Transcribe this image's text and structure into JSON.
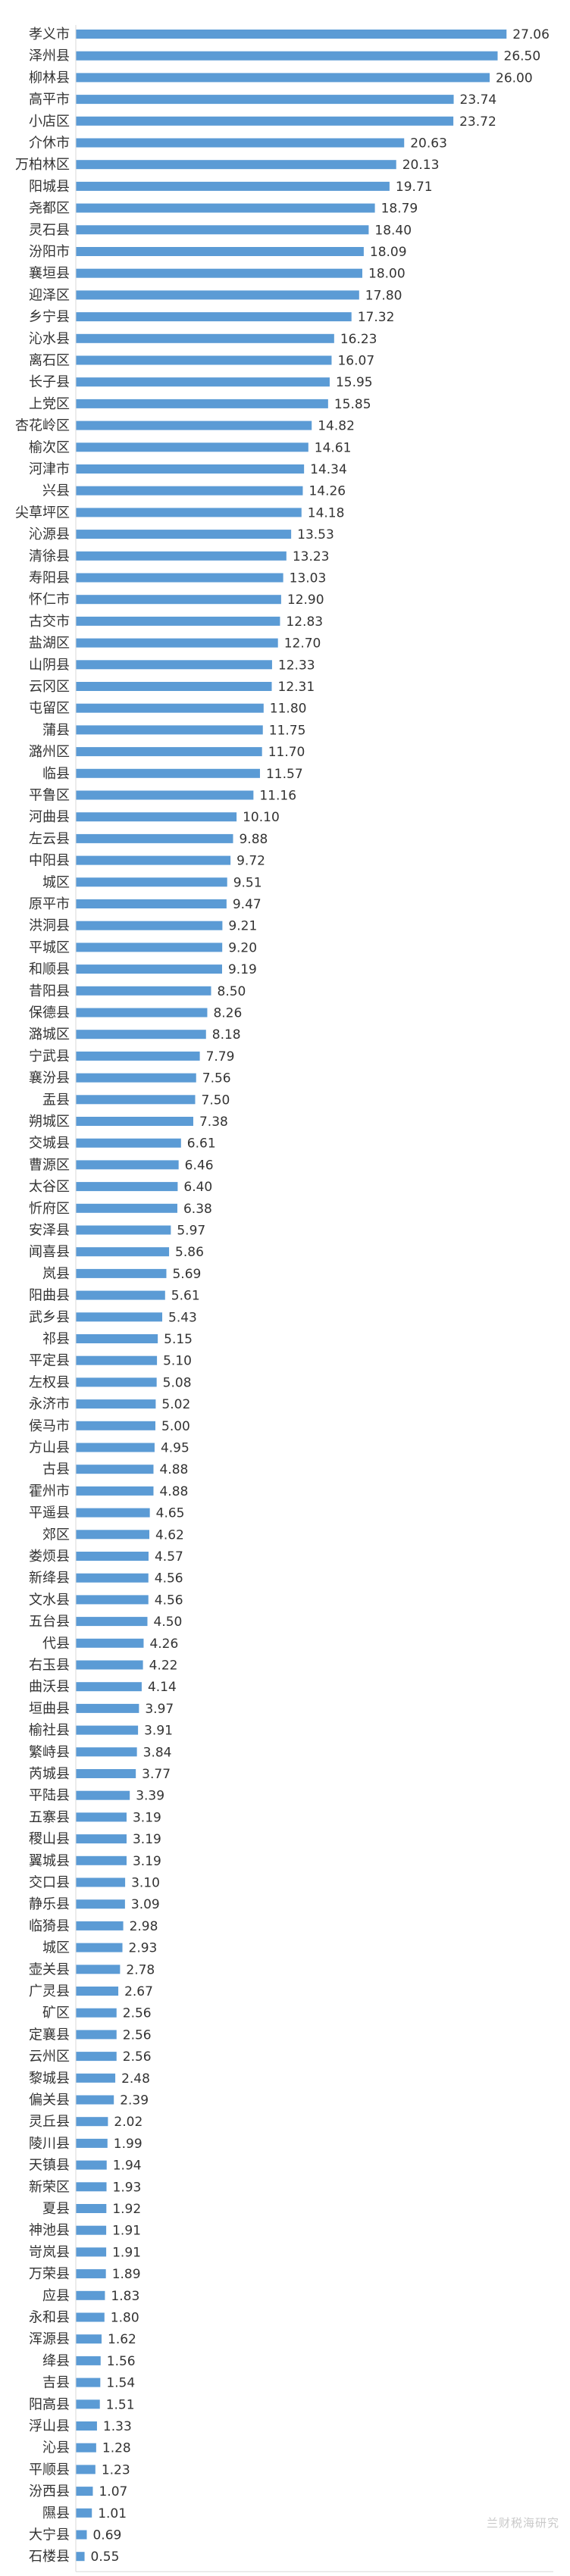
{
  "chart_data": {
    "type": "bar",
    "orientation": "horizontal",
    "title": "",
    "xlabel": "",
    "ylabel": "",
    "xlim": [
      0,
      30
    ],
    "xticks": [
      "0.00",
      "5.00",
      "10.00",
      "15.00",
      "20.00",
      "25.00",
      "30.00"
    ],
    "grid": false,
    "legend": "none",
    "bar_color": "#5b9bd5",
    "categories": [
      "孝义市",
      "泽州县",
      "柳林县",
      "高平市",
      "小店区",
      "介休市",
      "万柏林区",
      "阳城县",
      "尧都区",
      "灵石县",
      "汾阳市",
      "襄垣县",
      "迎泽区",
      "乡宁县",
      "沁水县",
      "离石区",
      "长子县",
      "上党区",
      "杏花岭区",
      "榆次区",
      "河津市",
      "兴县",
      "尖草坪区",
      "沁源县",
      "清徐县",
      "寿阳县",
      "怀仁市",
      "古交市",
      "盐湖区",
      "山阴县",
      "云冈区",
      "屯留区",
      "蒲县",
      "潞州区",
      "临县",
      "平鲁区",
      "河曲县",
      "左云县",
      "中阳县",
      "城区",
      "原平市",
      "洪洞县",
      "平城区",
      "和顺县",
      "昔阳县",
      "保德县",
      "潞城区",
      "宁武县",
      "襄汾县",
      "盂县",
      "朔城区",
      "交城县",
      "曹源区",
      "太谷区",
      "忻府区",
      "安泽县",
      "闻喜县",
      "岚县",
      "阳曲县",
      "武乡县",
      "祁县",
      "平定县",
      "左权县",
      "永济市",
      "侯马市",
      "方山县",
      "古县",
      "霍州市",
      "平遥县",
      "郊区",
      "娄烦县",
      "新绛县",
      "文水县",
      "五台县",
      "代县",
      "右玉县",
      "曲沃县",
      "垣曲县",
      "榆社县",
      "繁峙县",
      "芮城县",
      "平陆县",
      "五寨县",
      "稷山县",
      "翼城县",
      "交口县",
      "静乐县",
      "临猗县",
      "城区",
      "壶关县",
      "广灵县",
      "矿区",
      "定襄县",
      "云州区",
      "黎城县",
      "偏关县",
      "灵丘县",
      "陵川县",
      "天镇县",
      "新荣区",
      "夏县",
      "神池县",
      "岢岚县",
      "万荣县",
      "应县",
      "永和县",
      "浑源县",
      "绛县",
      "吉县",
      "阳高县",
      "浮山县",
      "沁县",
      "平顺县",
      "汾西县",
      "隰县",
      "大宁县",
      "石楼县"
    ],
    "values": [
      27.06,
      26.5,
      26.0,
      23.74,
      23.72,
      20.63,
      20.13,
      19.71,
      18.79,
      18.4,
      18.09,
      18.0,
      17.8,
      17.32,
      16.23,
      16.07,
      15.95,
      15.85,
      14.82,
      14.61,
      14.34,
      14.26,
      14.18,
      13.53,
      13.23,
      13.03,
      12.9,
      12.83,
      12.7,
      12.33,
      12.31,
      11.8,
      11.75,
      11.7,
      11.57,
      11.16,
      10.1,
      9.88,
      9.72,
      9.51,
      9.47,
      9.21,
      9.2,
      9.19,
      8.5,
      8.26,
      8.18,
      7.79,
      7.56,
      7.5,
      7.38,
      6.61,
      6.46,
      6.4,
      6.38,
      5.97,
      5.86,
      5.69,
      5.61,
      5.43,
      5.15,
      5.1,
      5.08,
      5.02,
      5.0,
      4.95,
      4.88,
      4.88,
      4.65,
      4.62,
      4.57,
      4.56,
      4.56,
      4.5,
      4.26,
      4.22,
      4.14,
      3.97,
      3.91,
      3.84,
      3.77,
      3.39,
      3.19,
      3.19,
      3.19,
      3.1,
      3.09,
      2.98,
      2.93,
      2.78,
      2.67,
      2.56,
      2.56,
      2.56,
      2.48,
      2.39,
      2.02,
      1.99,
      1.94,
      1.93,
      1.92,
      1.91,
      1.91,
      1.89,
      1.83,
      1.8,
      1.62,
      1.56,
      1.54,
      1.51,
      1.33,
      1.28,
      1.23,
      1.07,
      1.01,
      0.69,
      0.55
    ]
  },
  "watermark": "兰财税海研究"
}
